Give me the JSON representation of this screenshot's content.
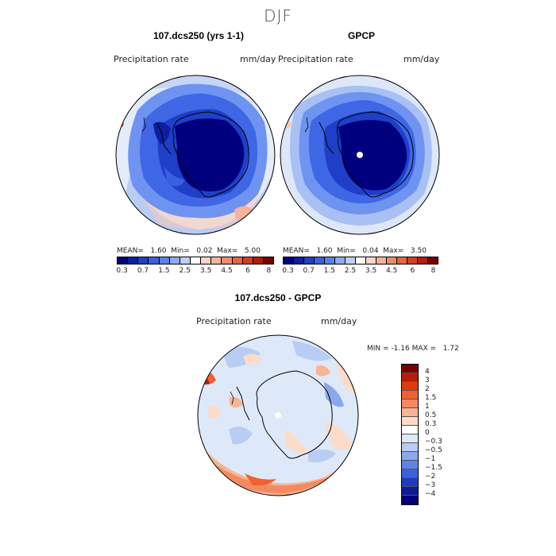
{
  "figure": {
    "season": "DJF"
  },
  "panels": {
    "model": {
      "title": "107.dcs250 (yrs 1-1)",
      "variable": "Precipitation rate",
      "units": "mm/day",
      "stats": {
        "mean_label": "MEAN=",
        "mean": "1.60",
        "min_label": "Min=",
        "min": "0.02",
        "max_label": "Max=",
        "max": "5.00"
      }
    },
    "obs": {
      "title": "GPCP",
      "variable": "Precipitation rate",
      "units": "mm/day",
      "stats": {
        "mean_label": "MEAN=",
        "mean": "1.60",
        "min_label": "Min=",
        "min": "0.04",
        "max_label": "Max=",
        "max": "3.50"
      }
    },
    "diff": {
      "title": "107.dcs250 - GPCP",
      "variable": "Precipitation rate",
      "units": "mm/day",
      "stats": {
        "min_label": "MIN =",
        "min": "-1.16",
        "max_label": "MAX =",
        "max": "1.72"
      }
    }
  },
  "colorbars": {
    "precip": {
      "colors": [
        "#000080",
        "#0b1fa0",
        "#1f3fc8",
        "#3a5fe0",
        "#5a80f0",
        "#8aaaf5",
        "#bcd0f8",
        "#ffffff",
        "#fbd6c2",
        "#f6b29a",
        "#f08c6c",
        "#e8633f",
        "#d93c1a",
        "#b51b08",
        "#7a0000"
      ],
      "tick_labels": [
        "0.3",
        "0.7",
        "1.5",
        "2.5",
        "3.5",
        "4.5",
        "6",
        "8"
      ]
    },
    "diff": {
      "colors": [
        "#7a0000",
        "#b81c05",
        "#e03a10",
        "#f06030",
        "#f48a60",
        "#f8b594",
        "#fcdcc8",
        "#ffffff",
        "#dde8f8",
        "#b8ccf4",
        "#8aa8ee",
        "#5f84e8",
        "#3a60dc",
        "#1e3cc0",
        "#0a1c98",
        "#000078"
      ],
      "tick_labels": [
        "4",
        "3",
        "2",
        "1.5",
        "1",
        "0.5",
        "0.3",
        "0",
        "−0.3",
        "−0.5",
        "−1",
        "−1.5",
        "−2",
        "−3",
        "−4"
      ]
    }
  }
}
